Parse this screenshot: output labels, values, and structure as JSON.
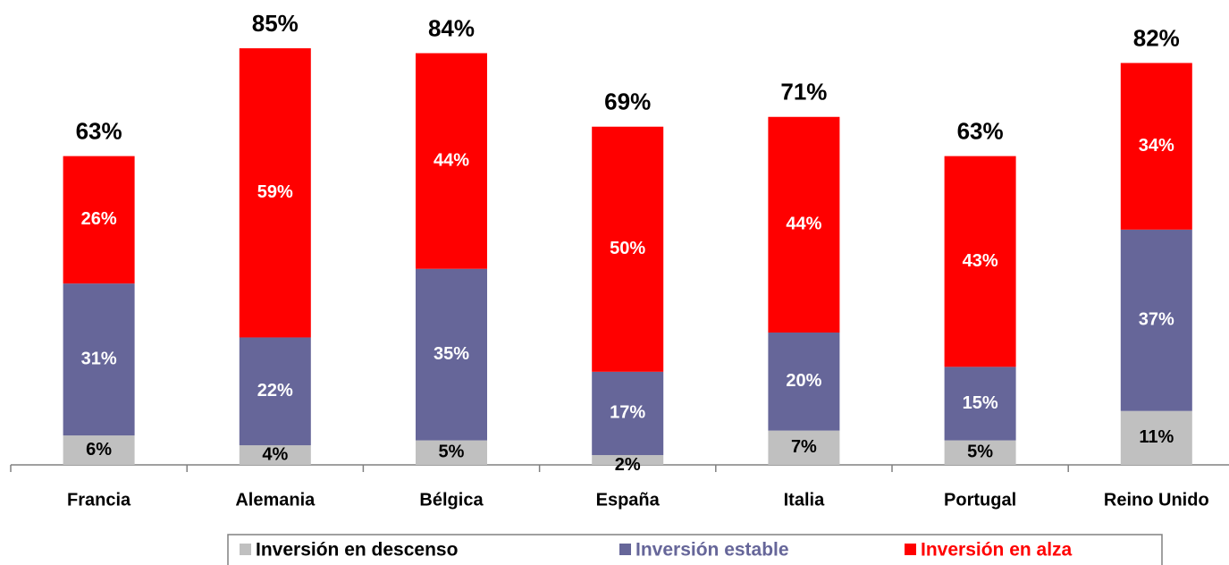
{
  "chart_data": {
    "type": "stacked_bar",
    "categories": [
      "Francia",
      "Alemania",
      "Bélgica",
      "España",
      "Italia",
      "Portugal",
      "Reino Unido"
    ],
    "series": [
      {
        "name": "Inversión en descenso",
        "color": "#c0c0c0",
        "label_color": "#000000",
        "values": [
          6,
          4,
          5,
          2,
          7,
          5,
          11
        ],
        "value_labels": [
          "6%",
          "4%",
          "5%",
          "2%",
          "7%",
          "5%",
          "11%"
        ]
      },
      {
        "name": "Inversión estable",
        "color": "#666699",
        "label_color": "#ffffff",
        "values": [
          31,
          22,
          35,
          17,
          20,
          15,
          37
        ],
        "value_labels": [
          "31%",
          "22%",
          "35%",
          "17%",
          "20%",
          "15%",
          "37%"
        ]
      },
      {
        "name": "Inversión en alza",
        "color": "#ff0000",
        "label_color": "#ffffff",
        "values": [
          26,
          59,
          44,
          50,
          44,
          43,
          34
        ],
        "value_labels": [
          "26%",
          "59%",
          "44%",
          "50%",
          "44%",
          "43%",
          "34%"
        ]
      }
    ],
    "totals": [
      63,
      85,
      84,
      69,
      71,
      63,
      82
    ],
    "total_labels": [
      "63%",
      "85%",
      "84%",
      "69%",
      "71%",
      "63%",
      "82%"
    ],
    "legend": "bottom"
  }
}
